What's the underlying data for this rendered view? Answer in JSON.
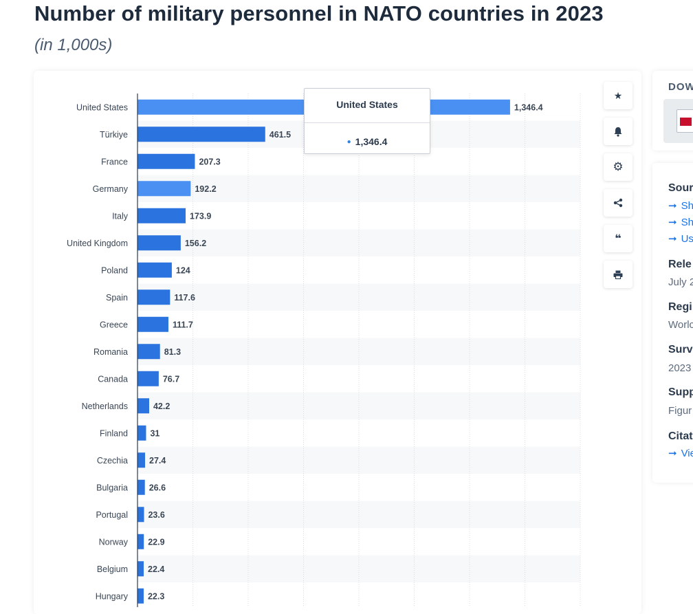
{
  "header": {
    "title": "Number of military personnel in NATO countries in 2023",
    "subtitle": "(in 1,000s)"
  },
  "chart_data": {
    "type": "bar",
    "orientation": "horizontal",
    "title": "Number of military personnel in NATO countries in 2023",
    "unit": "in 1,000s",
    "categories": [
      "United States",
      "Türkiye",
      "France",
      "Germany",
      "Italy",
      "United Kingdom",
      "Poland",
      "Spain",
      "Greece",
      "Romania",
      "Canada",
      "Netherlands",
      "Finland",
      "Czechia",
      "Bulgaria",
      "Portugal",
      "Norway",
      "Belgium",
      "Hungary"
    ],
    "values": [
      1346.4,
      461.5,
      207.3,
      192.2,
      173.9,
      156.2,
      124,
      117.6,
      111.7,
      81.3,
      76.7,
      42.2,
      31,
      27.4,
      26.6,
      23.6,
      22.9,
      22.4,
      22.3
    ],
    "value_labels": [
      "1,346.4",
      "461.5",
      "207.3",
      "192.2",
      "173.9",
      "156.2",
      "124",
      "117.6",
      "111.7",
      "81.3",
      "76.7",
      "42.2",
      "31",
      "27.4",
      "26.6",
      "23.6",
      "22.9",
      "22.4",
      "22.3"
    ],
    "highlighted": [
      "United States",
      "Germany"
    ],
    "xlim": [
      0,
      1600
    ],
    "grid": true,
    "colors": {
      "bar": "#2b73de",
      "bar_highlight": "#4a90f2",
      "stripe": "#f7f8f9",
      "grid": "#d9dde2"
    }
  },
  "tooltip": {
    "title": "United States",
    "value": "1,346.4"
  },
  "actions": [
    {
      "icon": "star-icon",
      "glyph": "★"
    },
    {
      "icon": "bell-icon",
      "glyph": "🔔"
    },
    {
      "icon": "gear-icon",
      "glyph": "⚙"
    },
    {
      "icon": "share-icon",
      "glyph": "⋖"
    },
    {
      "icon": "quote-icon",
      "glyph": "❝"
    },
    {
      "icon": "print-icon",
      "glyph": "⎙"
    }
  ],
  "sidebar": {
    "download_label": "DOW",
    "source_heading": "Sour",
    "source_links": [
      "Sh",
      "Sh",
      "Us"
    ],
    "release_heading": "Rele",
    "release_value": "July 2",
    "region_heading": "Regi",
    "region_value": "Worlc",
    "survey_heading": "Surv",
    "survey_value": "2023",
    "supplementary_heading": "Supp",
    "supplementary_value": "Figur",
    "citation_heading": "Citat",
    "citation_link": "Vie"
  }
}
